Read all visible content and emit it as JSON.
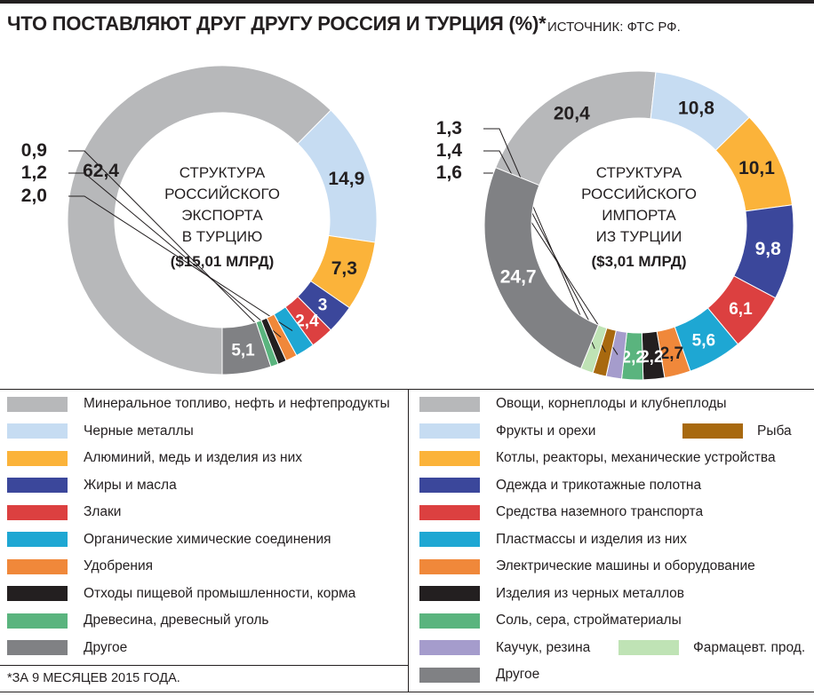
{
  "header": {
    "title": "ЧТО ПОСТАВЛЯЮТ ДРУГ ДРУГУ РОССИЯ И ТУРЦИЯ (%)*",
    "source": "ИСТОЧНИК: ФТС РФ."
  },
  "chart_data": [
    {
      "type": "pie",
      "title": "СТРУКТУРА РОССИЙСКОГО ЭКСПОРТА В ТУРЦИЮ",
      "center_lines": [
        "СТРУКТУРА",
        "РОССИЙСКОГО",
        "ЭКСПОРТА",
        "В ТУРЦИЮ"
      ],
      "total_label": "($15,01 МЛРД)",
      "slices": [
        {
          "label": "Минеральное топливо, нефть и нефтепродукты",
          "value": 62.4,
          "display": "62,4",
          "color": "#b7b8ba"
        },
        {
          "label": "Черные металлы",
          "value": 14.9,
          "display": "14,9",
          "color": "#c6dcf2"
        },
        {
          "label": "Алюминий, медь и изделия из них",
          "value": 7.3,
          "display": "7,3",
          "color": "#fbb33a"
        },
        {
          "label": "Жиры и масла",
          "value": 3,
          "display": "3",
          "color": "#3b479b"
        },
        {
          "label": "Злаки",
          "value": 2.4,
          "display": "2,4",
          "color": "#dc4040"
        },
        {
          "label": "Органические химические соединения",
          "value": 2.0,
          "display": "2,0",
          "color": "#1ea7d3"
        },
        {
          "label": "Удобрения",
          "value": 1.2,
          "display": "1,2",
          "color": "#f0883a"
        },
        {
          "label": "Отходы пищевой промышленности, корма",
          "value": 0.9,
          "display": "0,9",
          "color": "#231f20"
        },
        {
          "label": "Древесина, древесный уголь",
          "value": 0.8,
          "display": "0,8",
          "color": "#5ab47e"
        },
        {
          "label": "Другое",
          "value": 5.1,
          "display": "5,1",
          "color": "#808184"
        }
      ]
    },
    {
      "type": "pie",
      "title": "СТРУКТУРА РОССИЙСКОГО ИМПОРТА ИЗ ТУРЦИИ",
      "center_lines": [
        "СТРУКТУРА",
        "РОССИЙСКОГО",
        "ИМПОРТА",
        "ИЗ ТУРЦИИ"
      ],
      "total_label": "($3,01 МЛРД)",
      "slices": [
        {
          "label": "Овощи, корнеплоды и клубнеплоды",
          "value": 20.4,
          "display": "20,4",
          "color": "#b7b8ba"
        },
        {
          "label": "Фрукты и орехи",
          "value": 10.8,
          "display": "10,8",
          "color": "#c6dcf2"
        },
        {
          "label": "Котлы, реакторы, механические устройства",
          "value": 10.1,
          "display": "10,1",
          "color": "#fbb33a"
        },
        {
          "label": "Одежда и трикотажные полотна",
          "value": 9.8,
          "display": "9,8",
          "color": "#3b479b"
        },
        {
          "label": "Средства наземного транспорта",
          "value": 6.1,
          "display": "6,1",
          "color": "#dc4040"
        },
        {
          "label": "Пластмассы и изделия из них",
          "value": 5.6,
          "display": "5,6",
          "color": "#1ea7d3"
        },
        {
          "label": "Электрические машины и оборудование",
          "value": 2.7,
          "display": "2,7",
          "color": "#f0883a"
        },
        {
          "label": "Изделия из черных металлов",
          "value": 2.2,
          "display": "2,2",
          "color": "#231f20"
        },
        {
          "label": "Соль, сера, стройматериалы",
          "value": 2.2,
          "display": "2,2",
          "color": "#5ab47e"
        },
        {
          "label": "Каучук, резина",
          "value": 1.6,
          "display": "1,6",
          "color": "#a59ccc"
        },
        {
          "label": "Рыба",
          "value": 1.4,
          "display": "1,4",
          "color": "#a8690f"
        },
        {
          "label": "Фармацевт. прод.",
          "value": 1.3,
          "display": "1,3",
          "color": "#bfe3b5"
        },
        {
          "label": "Другое",
          "value": 24.7,
          "display": "24,7",
          "color": "#808184"
        }
      ]
    }
  ],
  "legend": {
    "left": [
      {
        "label": "Минеральное топливо, нефть и нефтепродукты",
        "color": "#b7b8ba"
      },
      {
        "label": "Черные металлы",
        "color": "#c6dcf2"
      },
      {
        "label": "Алюминий, медь и изделия из них",
        "color": "#fbb33a"
      },
      {
        "label": "Жиры и масла",
        "color": "#3b479b"
      },
      {
        "label": "Злаки",
        "color": "#dc4040"
      },
      {
        "label": "Органические химические соединения",
        "color": "#1ea7d3"
      },
      {
        "label": "Удобрения",
        "color": "#f0883a"
      },
      {
        "label": "Отходы пищевой промышленности, корма",
        "color": "#231f20"
      },
      {
        "label": "Древесина, древесный уголь",
        "color": "#5ab47e"
      },
      {
        "label": "Другое",
        "color": "#808184"
      }
    ],
    "right": [
      {
        "label": "Овощи, корнеплоды и клубнеплоды",
        "color": "#b7b8ba"
      },
      {
        "label": "Фрукты и орехи",
        "color": "#c6dcf2"
      },
      {
        "label": "Котлы, реакторы, механические устройства",
        "color": "#fbb33a"
      },
      {
        "label": "Одежда и трикотажные полотна",
        "color": "#3b479b"
      },
      {
        "label": "Средства наземного транспорта",
        "color": "#dc4040"
      },
      {
        "label": "Пластмассы и изделия из них",
        "color": "#1ea7d3"
      },
      {
        "label": "Электрические машины и оборудование",
        "color": "#f0883a"
      },
      {
        "label": "Изделия из черных металлов",
        "color": "#231f20"
      },
      {
        "label": "Соль, сера, стройматериалы",
        "color": "#5ab47e"
      },
      {
        "label": "Каучук, резина",
        "color": "#a59ccc"
      },
      {
        "label": "Другое",
        "color": "#808184"
      }
    ],
    "extras": [
      {
        "label": "Рыба",
        "color": "#a8690f"
      },
      {
        "label": "Фармацевт. прод.",
        "color": "#bfe3b5"
      }
    ]
  },
  "footnote": "*ЗА 9 МЕСЯЦЕВ 2015 ГОДА."
}
